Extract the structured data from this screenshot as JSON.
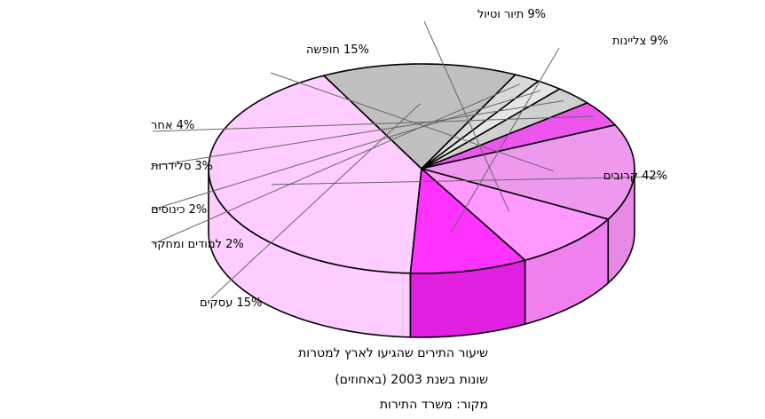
{
  "chart_data": {
    "type": "pie",
    "slices": [
      {
        "label": "קרובים",
        "value": 42,
        "value_label": "42%",
        "color": "#ffccff",
        "side": "#ffccff"
      },
      {
        "label": "עסקים",
        "value": 15,
        "value_label": "15%",
        "color": "#c0c0c0",
        "side": "#b3b3b3"
      },
      {
        "label": "למודים ומחקר",
        "value": 2,
        "value_label": "2%",
        "color": "#d9d9d9",
        "side": "#cfcfcf"
      },
      {
        "label": "כינוסים",
        "value": 2,
        "value_label": "2%",
        "color": "#e6e6e6",
        "side": "#dcdcdc"
      },
      {
        "label": "סלידרות",
        "value": 3,
        "value_label": "3%",
        "color": "#d0d0d0",
        "side": "#c5c5c5"
      },
      {
        "label": "אחר",
        "value": 4,
        "value_label": "4%",
        "color": "#ee55ee",
        "side": "#e040e0"
      },
      {
        "label": "חופשה",
        "value": 15,
        "value_label": "15%",
        "color": "#ee99ee",
        "side": "#e68ae6"
      },
      {
        "label": "תיור וטיול",
        "value": 9,
        "value_label": "9%",
        "color": "#ff99ff",
        "side": "#f080f0"
      },
      {
        "label": "צליינות",
        "value": 9,
        "value_label": "9%",
        "color": "#ff33ff",
        "side": "#e020e0"
      }
    ],
    "caption_lines": [
      "שיעור התירים שהגיעו לארץ למטרות",
      "שונות בשנת 2003 (באחוזים)",
      "מקור: משרד התירות"
    ]
  }
}
